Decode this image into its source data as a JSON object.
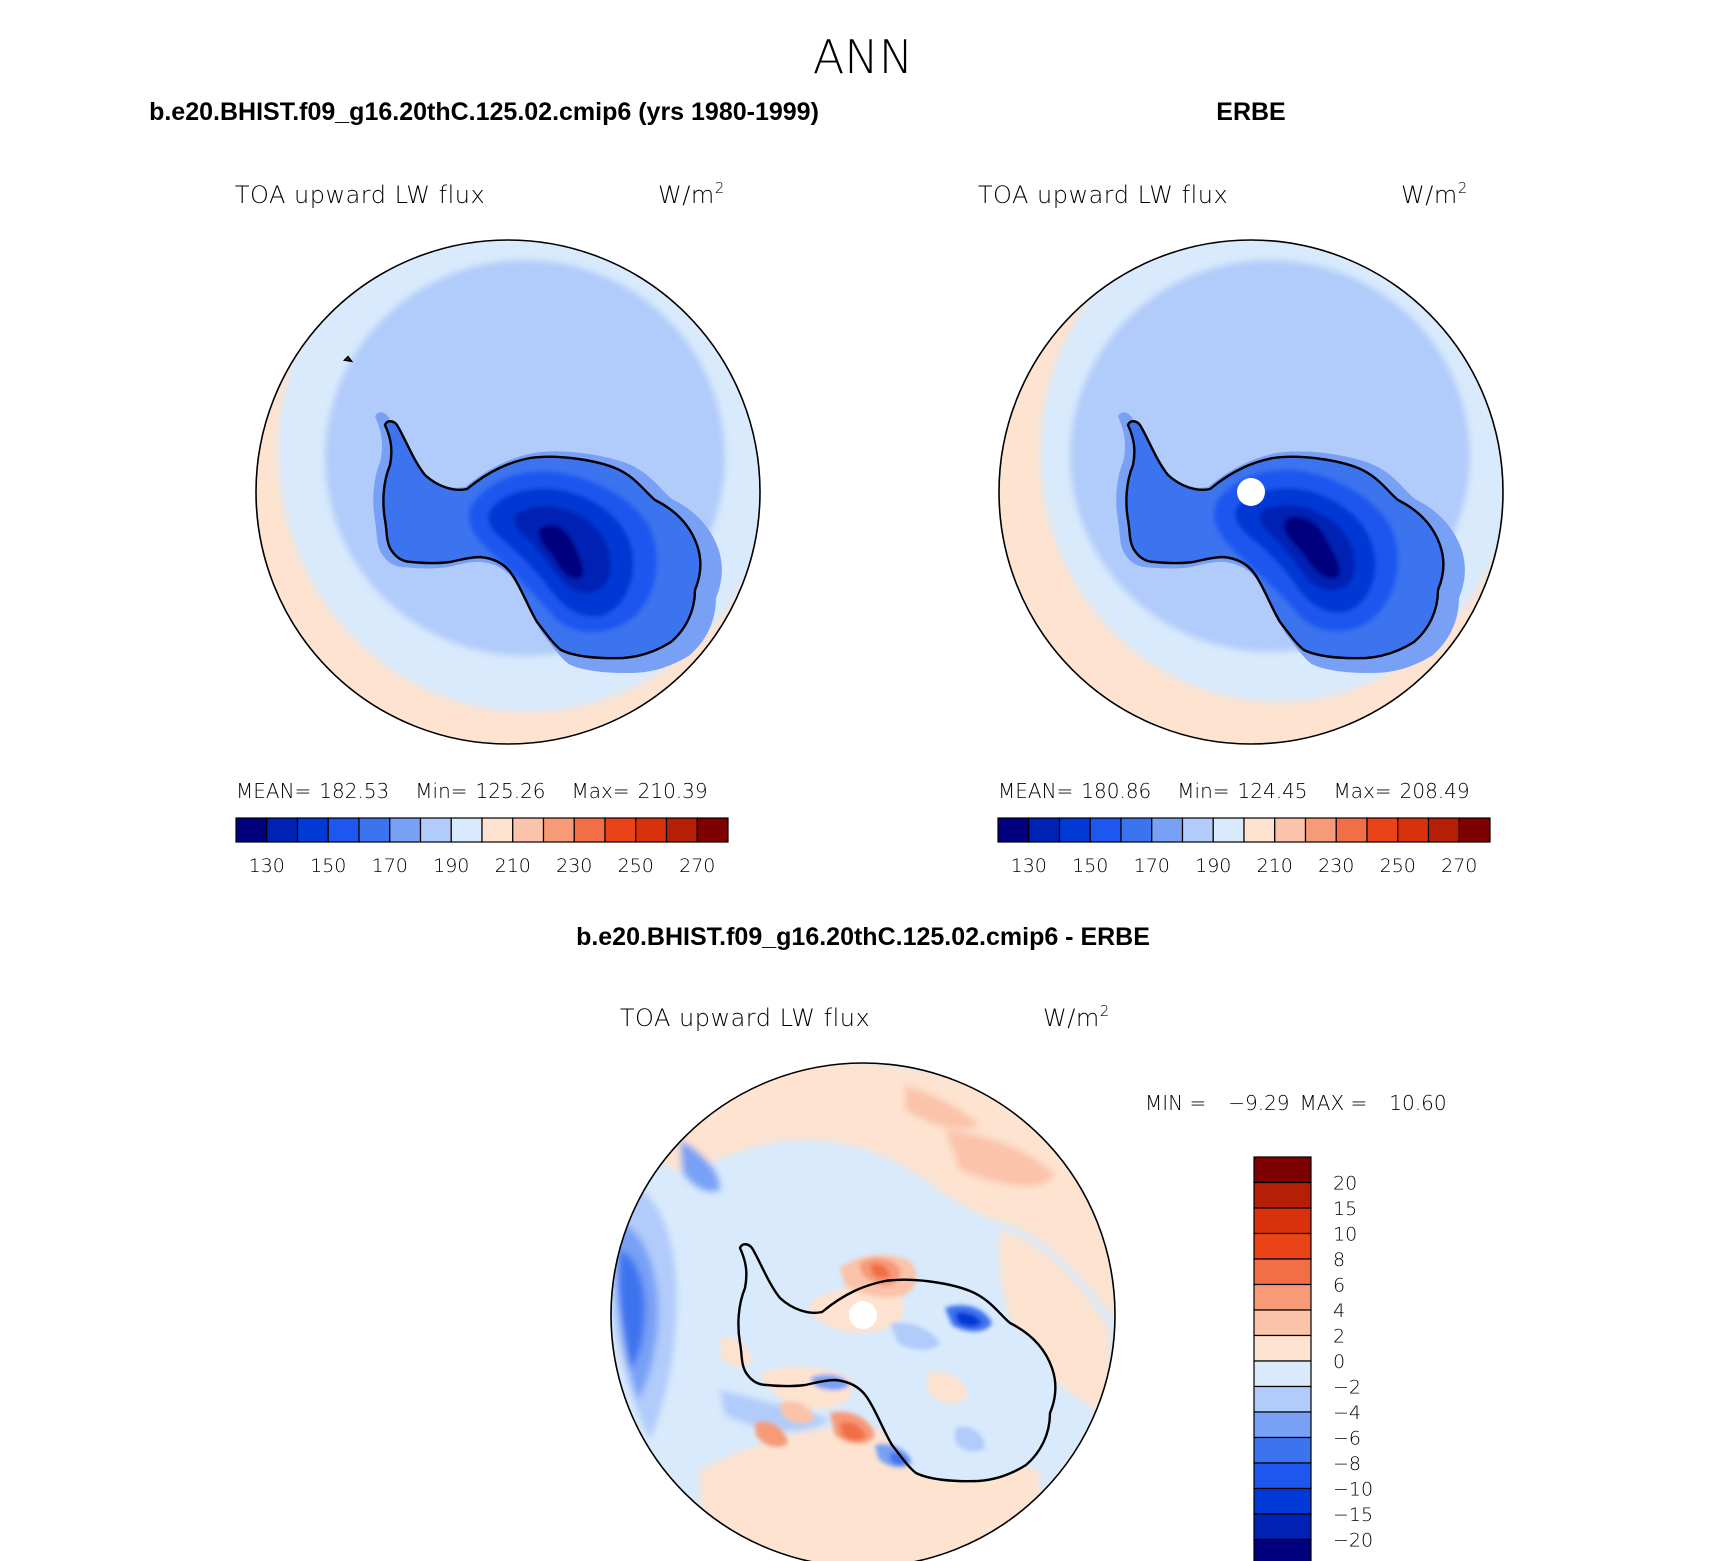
{
  "figure": {
    "title": "ANN",
    "panels": [
      {
        "title": "b.e20.BHIST.f09_g16.20thC.125.02.cmip6 (yrs 1980-1999)",
        "variable": "TOA upward LW flux",
        "units_base": "W/m",
        "units_sup": "2",
        "stats": {
          "mean_label": "MEAN=",
          "mean": "182.53",
          "min_label": "Min=",
          "min": "125.26",
          "max_label": "Max=",
          "max": "210.39"
        }
      },
      {
        "title": "ERBE",
        "variable": "TOA upward LW flux",
        "units_base": "W/m",
        "units_sup": "2",
        "stats": {
          "mean_label": "MEAN=",
          "mean": "180.86",
          "min_label": "Min=",
          "min": "124.45",
          "max_label": "Max=",
          "max": "208.49"
        }
      },
      {
        "title": "b.e20.BHIST.f09_g16.20thC.125.02.cmip6 - ERBE",
        "variable": "TOA upward LW flux",
        "units_base": "W/m",
        "units_sup": "2",
        "stats": {
          "min_label": "MIN =",
          "min": "−9.29",
          "max_label": "MAX =",
          "max": "10.60"
        }
      }
    ]
  },
  "chart_data": [
    {
      "type": "heatmap",
      "projection": "south-polar-stereographic",
      "title": "b.e20.BHIST.f09_g16.20thC.125.02.cmip6 (yrs 1980-1999)",
      "contour_levels": [
        130,
        140,
        150,
        160,
        170,
        180,
        190,
        200,
        210,
        220,
        230,
        240,
        250,
        260,
        270
      ],
      "colorbar_labels": [
        "130",
        "150",
        "170",
        "190",
        "210",
        "230",
        "250",
        "270"
      ],
      "colors": [
        "#00007f",
        "#0022b4",
        "#0039d6",
        "#1e57ef",
        "#3c73ef",
        "#78a0f5",
        "#b1cbfa",
        "#d8eafc",
        "#fde3d0",
        "#fbc3a9",
        "#f69a78",
        "#f26e44",
        "#ea4317",
        "#da310d",
        "#b41f05",
        "#7f0000"
      ],
      "stats": {
        "mean": 182.53,
        "min": 125.26,
        "max": 210.39
      }
    },
    {
      "type": "heatmap",
      "projection": "south-polar-stereographic",
      "title": "ERBE",
      "contour_levels": [
        130,
        140,
        150,
        160,
        170,
        180,
        190,
        200,
        210,
        220,
        230,
        240,
        250,
        260,
        270
      ],
      "colorbar_labels": [
        "130",
        "150",
        "170",
        "190",
        "210",
        "230",
        "250",
        "270"
      ],
      "colors": [
        "#00007f",
        "#0022b4",
        "#0039d6",
        "#1e57ef",
        "#3c73ef",
        "#78a0f5",
        "#b1cbfa",
        "#d8eafc",
        "#fde3d0",
        "#fbc3a9",
        "#f69a78",
        "#f26e44",
        "#ea4317",
        "#da310d",
        "#b41f05",
        "#7f0000"
      ],
      "stats": {
        "mean": 180.86,
        "min": 124.45,
        "max": 208.49
      }
    },
    {
      "type": "heatmap",
      "projection": "south-polar-stereographic",
      "title": "b.e20.BHIST.f09_g16.20thC.125.02.cmip6 - ERBE",
      "contour_levels": [
        -20,
        -15,
        -10,
        -8,
        -6,
        -4,
        -2,
        0,
        2,
        4,
        6,
        8,
        10,
        15,
        20
      ],
      "colorbar_labels": [
        "20",
        "15",
        "10",
        "8",
        "6",
        "4",
        "2",
        "0",
        "−2",
        "−4",
        "−6",
        "−8",
        "−10",
        "−15",
        "−20"
      ],
      "colors": [
        "#00007f",
        "#0022b4",
        "#0039d6",
        "#1e57ef",
        "#3c73ef",
        "#78a0f5",
        "#b1cbfa",
        "#d8eafc",
        "#fde3d0",
        "#fbc3a9",
        "#f69a78",
        "#f26e44",
        "#ea4317",
        "#da310d",
        "#b41f05",
        "#7f0000"
      ],
      "stats": {
        "min": -9.29,
        "max": 10.6
      }
    }
  ]
}
